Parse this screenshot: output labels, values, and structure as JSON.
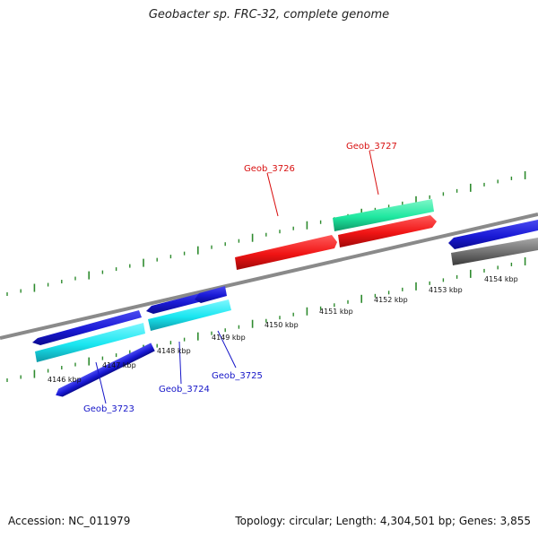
{
  "title": "Geobacter sp. FRC-32, complete genome",
  "footer": {
    "accession": "Accession: NC_011979",
    "summary": "Topology: circular; Length: 4,304,501 bp; Genes: 3,855"
  },
  "colors": {
    "backbone": "#8a8a8a",
    "ticks": "#2e8b2e",
    "blue": "#1a1ad6",
    "cyan": "#19e6f0",
    "red": "#f01414",
    "green": "#1fe8a0",
    "gray": "#6e6e6e",
    "label_blue": "#1515c8",
    "label_red": "#d81010"
  },
  "ticks": [
    {
      "label": "4146 kbp"
    },
    {
      "label": "4147 kbp"
    },
    {
      "label": "4148 kbp"
    },
    {
      "label": "4149 kbp"
    },
    {
      "label": "4150 kbp"
    },
    {
      "label": "4151 kbp"
    },
    {
      "label": "4152 kbp"
    },
    {
      "label": "4153 kbp"
    },
    {
      "label": "4154 kbp"
    }
  ],
  "genes": [
    {
      "id": "Geob_3723"
    },
    {
      "id": "Geob_3724"
    },
    {
      "id": "Geob_3725"
    },
    {
      "id": "Geob_3726"
    },
    {
      "id": "Geob_3727"
    }
  ]
}
